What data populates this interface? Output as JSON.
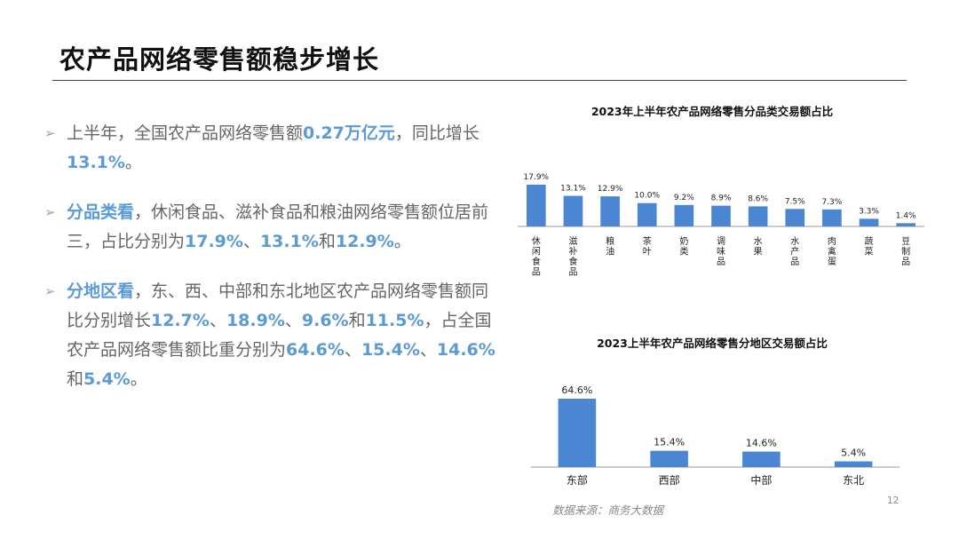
{
  "page": {
    "title": "农产品网络零售额稳步增长",
    "source": "数据来源：商务大数据",
    "page_number": "12",
    "accent_color": "#5b9bd5",
    "bar_color": "#4a86d2"
  },
  "bullets": [
    [
      {
        "t": "上半年，全国农产品网络零售额",
        "hl": false
      },
      {
        "t": "0.27万亿元",
        "hl": true
      },
      {
        "t": "，同比增长",
        "hl": false
      },
      {
        "t": "13.1%",
        "hl": true
      },
      {
        "t": "。",
        "hl": false
      }
    ],
    [
      {
        "t": "分品类看",
        "hl": true
      },
      {
        "t": "，休闲食品、滋补食品和粮油网络零售额位居前三，占比分别为",
        "hl": false
      },
      {
        "t": "17.9%",
        "hl": true
      },
      {
        "t": "、",
        "hl": false
      },
      {
        "t": "13.1%",
        "hl": true
      },
      {
        "t": "和",
        "hl": false
      },
      {
        "t": "12.9%",
        "hl": true
      },
      {
        "t": "。",
        "hl": false
      }
    ],
    [
      {
        "t": "分地区看",
        "hl": true
      },
      {
        "t": "，东、西、中部和东北地区农产品网络零售额同比分别增长",
        "hl": false
      },
      {
        "t": "12.7%",
        "hl": true
      },
      {
        "t": "、",
        "hl": false
      },
      {
        "t": "18.9%",
        "hl": true
      },
      {
        "t": "、",
        "hl": false
      },
      {
        "t": "9.6%",
        "hl": true
      },
      {
        "t": "和",
        "hl": false
      },
      {
        "t": "11.5%",
        "hl": true
      },
      {
        "t": "，占全国农产品网络零售额比重分别为",
        "hl": false
      },
      {
        "t": "64.6%",
        "hl": true
      },
      {
        "t": "、",
        "hl": false
      },
      {
        "t": "15.4%",
        "hl": true
      },
      {
        "t": "、",
        "hl": false
      },
      {
        "t": "14.6%",
        "hl": true
      },
      {
        "t": "和",
        "hl": false
      },
      {
        "t": "5.4%",
        "hl": true
      },
      {
        "t": "。",
        "hl": false
      }
    ]
  ],
  "chart_data": [
    {
      "type": "bar",
      "title": "2023年上半年农产品网络零售分品类交易额占比",
      "categories": [
        "休闲食品",
        "滋补食品",
        "粮油",
        "茶叶",
        "奶类",
        "调味品",
        "水果",
        "水产品",
        "肉禽蛋",
        "蔬菜",
        "豆制品"
      ],
      "values": [
        17.9,
        13.1,
        12.9,
        10.0,
        9.2,
        8.9,
        8.6,
        7.5,
        7.3,
        3.3,
        1.4
      ],
      "data_labels": [
        "17.9%",
        "13.1%",
        "12.9%",
        "10.0%",
        "9.2%",
        "8.9%",
        "8.6%",
        "7.5%",
        "7.3%",
        "3.3%",
        "1.4%"
      ],
      "label_orientation": "vertical",
      "grid": false,
      "legend": "none"
    },
    {
      "type": "bar",
      "title": "2023上半年农产品网络零售分地区交易额占比",
      "categories": [
        "东部",
        "西部",
        "中部",
        "东北"
      ],
      "values": [
        64.6,
        15.4,
        14.6,
        5.4
      ],
      "data_labels": [
        "64.6%",
        "15.4%",
        "14.6%",
        "5.4%"
      ],
      "label_orientation": "horizontal",
      "grid": false,
      "legend": "none"
    }
  ]
}
